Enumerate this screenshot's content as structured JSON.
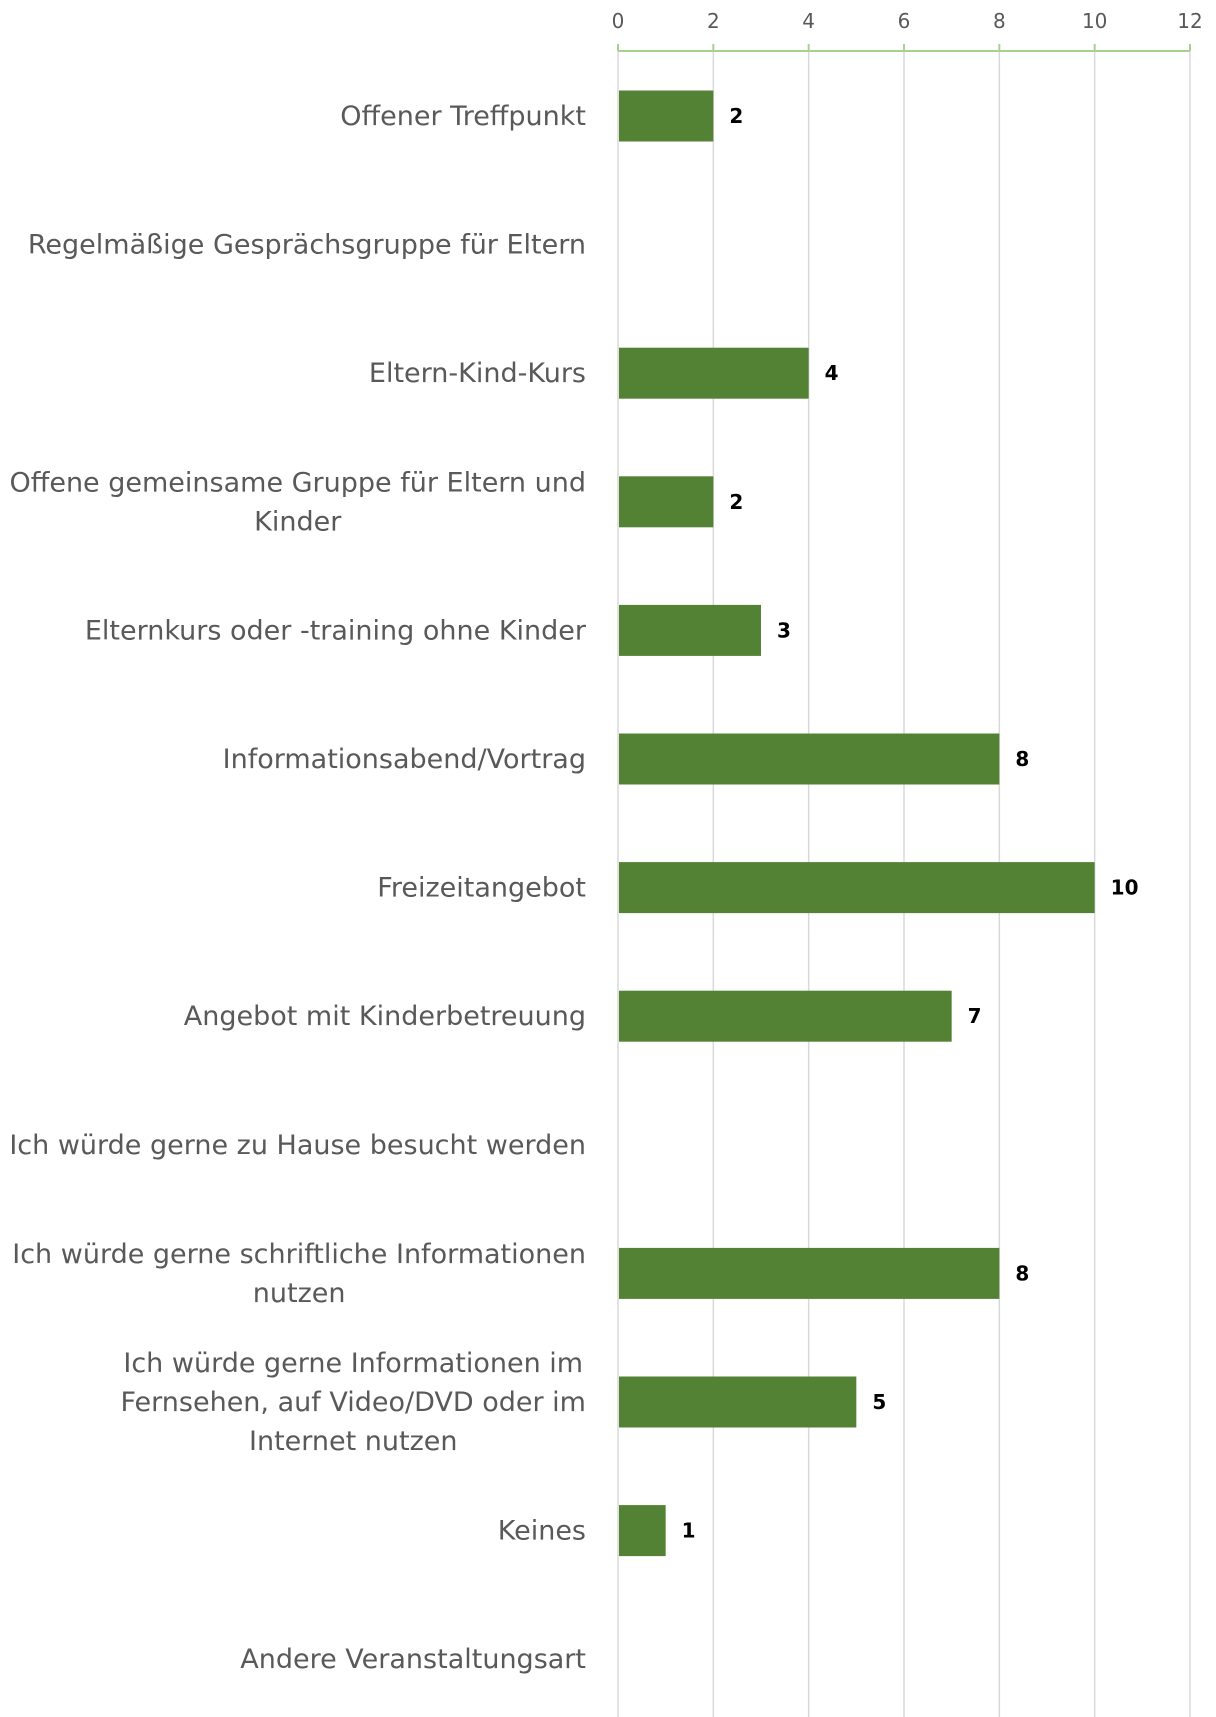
{
  "chart_data": {
    "type": "bar",
    "orientation": "horizontal",
    "categories": [
      "Offener Treffpunkt",
      "Regelmäßige Gesprächsgruppe für Eltern",
      "Eltern-Kind-Kurs",
      "Offene gemeinsame Gruppe für Eltern und Kinder",
      "Elternkurs oder -training ohne Kinder",
      "Informationsabend/Vortrag",
      "Freizeitangebot",
      "Angebot mit Kinderbetreuung",
      "Ich würde gerne zu Hause besucht werden",
      "Ich würde gerne schriftliche Informationen nutzen",
      "Ich würde gerne Informationen im Fernsehen, auf Video/DVD oder im Internet nutzen",
      "Keines",
      "Andere Veranstaltungsart"
    ],
    "category_lines": [
      [
        "Offener Treffpunkt"
      ],
      [
        "Regelmäßige Gesprächsgruppe für Eltern"
      ],
      [
        "Eltern-Kind-Kurs"
      ],
      [
        "Offene gemeinsame Gruppe für Eltern und",
        "Kinder"
      ],
      [
        "Elternkurs oder -training ohne Kinder"
      ],
      [
        "Informationsabend/Vortrag"
      ],
      [
        "Freizeitangebot"
      ],
      [
        "Angebot mit Kinderbetreuung"
      ],
      [
        "Ich würde gerne zu Hause besucht werden"
      ],
      [
        "Ich würde gerne schriftliche Informationen",
        "nutzen"
      ],
      [
        "Ich würde gerne Informationen im",
        "Fernsehen, auf Video/DVD oder im",
        "Internet nutzen"
      ],
      [
        "Keines"
      ],
      [
        "Andere Veranstaltungsart"
      ]
    ],
    "values": [
      2,
      null,
      4,
      2,
      3,
      8,
      10,
      7,
      null,
      8,
      5,
      1,
      null
    ],
    "data_labels": [
      "2",
      "",
      "4",
      "2",
      "3",
      "8",
      "10",
      "7",
      "",
      "8",
      "5",
      "1",
      ""
    ],
    "xlim": [
      0,
      12
    ],
    "x_ticks": [
      "0",
      "2",
      "4",
      "6",
      "8",
      "10",
      "12"
    ],
    "axis_position": "top",
    "grid": true,
    "legend": "none",
    "colors": {
      "bar": "#548235",
      "axis": "#a9d18e",
      "grid": "#d9d9d9",
      "label": "#595959",
      "data_label": "#000000"
    },
    "title": "",
    "xlabel": "",
    "ylabel": ""
  }
}
